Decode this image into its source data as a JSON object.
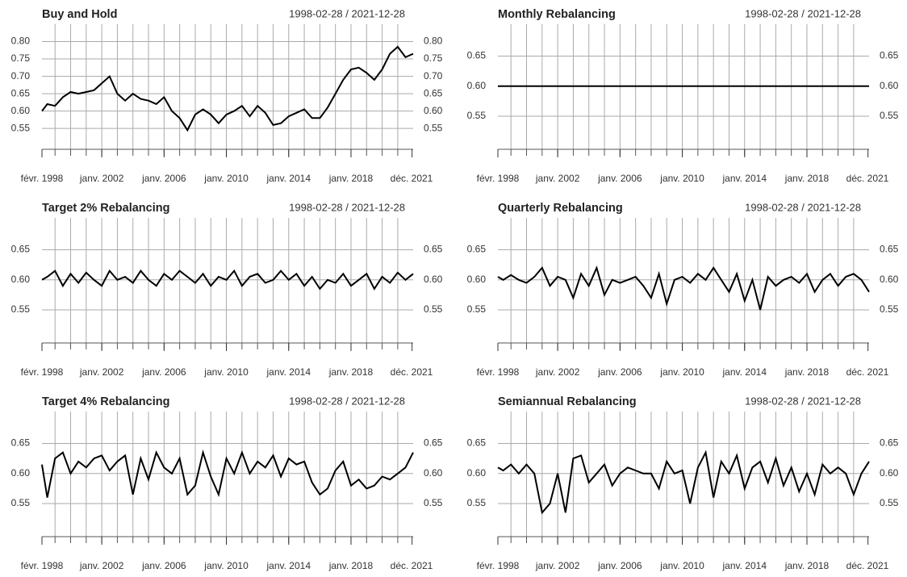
{
  "chart_data": [
    {
      "type": "line",
      "title": "Buy and Hold",
      "date_range": "1998-02-28 / 2021-12-28",
      "x": [
        1998.16,
        1998.5,
        1999,
        1999.5,
        2000,
        2000.5,
        2001,
        2001.5,
        2002,
        2002.5,
        2003,
        2003.5,
        2004,
        2004.5,
        2005,
        2005.5,
        2006,
        2006.5,
        2007,
        2007.5,
        2008,
        2008.5,
        2009,
        2009.5,
        2010,
        2010.5,
        2011,
        2011.5,
        2012,
        2012.5,
        2013,
        2013.5,
        2014,
        2014.5,
        2015,
        2015.5,
        2016,
        2016.5,
        2017,
        2017.5,
        2018,
        2018.5,
        2019,
        2019.5,
        2020,
        2020.5,
        2021,
        2021.5,
        2021.99
      ],
      "values": [
        0.6,
        0.62,
        0.615,
        0.64,
        0.655,
        0.65,
        0.655,
        0.66,
        0.68,
        0.7,
        0.65,
        0.63,
        0.65,
        0.635,
        0.63,
        0.62,
        0.64,
        0.6,
        0.58,
        0.545,
        0.59,
        0.605,
        0.59,
        0.565,
        0.59,
        0.6,
        0.615,
        0.585,
        0.615,
        0.595,
        0.56,
        0.565,
        0.585,
        0.595,
        0.605,
        0.58,
        0.58,
        0.61,
        0.65,
        0.69,
        0.72,
        0.725,
        0.71,
        0.69,
        0.72,
        0.765,
        0.785,
        0.755,
        0.765
      ],
      "color": "#000000",
      "xlim": [
        1998.16,
        2021.99
      ],
      "xticks": [
        {
          "value": 1998.16,
          "label": "févr. 1998"
        },
        {
          "value": 2002,
          "label": "janv. 2002"
        },
        {
          "value": 2006,
          "label": "janv. 2006"
        },
        {
          "value": 2010,
          "label": "janv. 2010"
        },
        {
          "value": 2014,
          "label": "janv. 2014"
        },
        {
          "value": 2018,
          "label": "janv. 2018"
        },
        {
          "value": 2021.92,
          "label": "déc. 2021"
        }
      ],
      "ylim": [
        0.49,
        0.85
      ],
      "yticks": [
        0.55,
        {
          "value": 0.6,
          "label": "0.60"
        },
        0.65,
        {
          "value": 0.7,
          "label": "0.70"
        },
        0.75,
        {
          "value": 0.8,
          "label": "0.80"
        }
      ],
      "grid": true
    },
    {
      "type": "line",
      "title": "Monthly Rebalancing",
      "date_range": "1998-02-28 / 2021-12-28",
      "x": [
        1998.16,
        1998.5,
        1999,
        1999.5,
        2000,
        2000.5,
        2001,
        2001.5,
        2002,
        2002.5,
        2003,
        2003.5,
        2004,
        2004.5,
        2005,
        2005.5,
        2006,
        2006.5,
        2007,
        2007.5,
        2008,
        2008.5,
        2009,
        2009.5,
        2010,
        2010.5,
        2011,
        2011.5,
        2012,
        2012.5,
        2013,
        2013.5,
        2014,
        2014.5,
        2015,
        2015.5,
        2016,
        2016.5,
        2017,
        2017.5,
        2018,
        2018.5,
        2019,
        2019.5,
        2020,
        2020.5,
        2021,
        2021.5,
        2021.99
      ],
      "values": [
        0.6,
        0.6,
        0.6,
        0.6,
        0.6,
        0.6,
        0.6,
        0.6,
        0.6,
        0.6,
        0.6,
        0.6,
        0.6,
        0.6,
        0.6,
        0.6,
        0.6,
        0.6,
        0.6,
        0.6,
        0.6,
        0.6,
        0.6,
        0.6,
        0.6,
        0.6,
        0.6,
        0.6,
        0.6,
        0.6,
        0.6,
        0.6,
        0.6,
        0.6,
        0.6,
        0.6,
        0.6,
        0.6,
        0.6,
        0.6,
        0.6,
        0.6,
        0.6,
        0.6,
        0.6,
        0.6,
        0.6,
        0.6,
        0.6
      ],
      "color": "#000000",
      "xlim": [
        1998.16,
        2021.99
      ],
      "xticks": [
        {
          "value": 1998.16,
          "label": "févr. 1998"
        },
        {
          "value": 2002,
          "label": "janv. 2002"
        },
        {
          "value": 2006,
          "label": "janv. 2006"
        },
        {
          "value": 2010,
          "label": "janv. 2010"
        },
        {
          "value": 2014,
          "label": "janv. 2014"
        },
        {
          "value": 2018,
          "label": "janv. 2018"
        },
        {
          "value": 2021.92,
          "label": "déc. 2021"
        }
      ],
      "ylim": [
        0.495,
        0.703
      ],
      "yticks": [
        0.55,
        {
          "value": 0.6,
          "label": "0.60"
        },
        0.65
      ],
      "grid": true
    },
    {
      "type": "line",
      "title": "Target 2% Rebalancing",
      "date_range": "1998-02-28 / 2021-12-28",
      "x": [
        1998.16,
        1998.5,
        1999,
        1999.5,
        2000,
        2000.5,
        2001,
        2001.5,
        2002,
        2002.5,
        2003,
        2003.5,
        2004,
        2004.5,
        2005,
        2005.5,
        2006,
        2006.5,
        2007,
        2007.5,
        2008,
        2008.5,
        2009,
        2009.5,
        2010,
        2010.5,
        2011,
        2011.5,
        2012,
        2012.5,
        2013,
        2013.5,
        2014,
        2014.5,
        2015,
        2015.5,
        2016,
        2016.5,
        2017,
        2017.5,
        2018,
        2018.5,
        2019,
        2019.5,
        2020,
        2020.5,
        2021,
        2021.5,
        2021.99
      ],
      "values": [
        0.6,
        0.605,
        0.615,
        0.59,
        0.61,
        0.595,
        0.612,
        0.6,
        0.59,
        0.615,
        0.6,
        0.605,
        0.595,
        0.615,
        0.6,
        0.59,
        0.61,
        0.6,
        0.615,
        0.605,
        0.595,
        0.61,
        0.59,
        0.605,
        0.6,
        0.615,
        0.59,
        0.605,
        0.61,
        0.595,
        0.6,
        0.615,
        0.6,
        0.61,
        0.59,
        0.605,
        0.585,
        0.6,
        0.595,
        0.61,
        0.59,
        0.6,
        0.61,
        0.585,
        0.605,
        0.595,
        0.612,
        0.6,
        0.61
      ],
      "color": "#000000",
      "xlim": [
        1998.16,
        2021.99
      ],
      "xticks": [
        {
          "value": 1998.16,
          "label": "févr. 1998"
        },
        {
          "value": 2002,
          "label": "janv. 2002"
        },
        {
          "value": 2006,
          "label": "janv. 2006"
        },
        {
          "value": 2010,
          "label": "janv. 2010"
        },
        {
          "value": 2014,
          "label": "janv. 2014"
        },
        {
          "value": 2018,
          "label": "janv. 2018"
        },
        {
          "value": 2021.92,
          "label": "déc. 2021"
        }
      ],
      "ylim": [
        0.495,
        0.703
      ],
      "yticks": [
        0.55,
        {
          "value": 0.6,
          "label": "0.60"
        },
        0.65
      ],
      "grid": true
    },
    {
      "type": "line",
      "title": "Quarterly Rebalancing",
      "date_range": "1998-02-28 / 2021-12-28",
      "x": [
        1998.16,
        1998.5,
        1999,
        1999.5,
        2000,
        2000.5,
        2001,
        2001.5,
        2002,
        2002.5,
        2003,
        2003.5,
        2004,
        2004.5,
        2005,
        2005.5,
        2006,
        2006.5,
        2007,
        2007.5,
        2008,
        2008.5,
        2009,
        2009.5,
        2010,
        2010.5,
        2011,
        2011.5,
        2012,
        2012.5,
        2013,
        2013.5,
        2014,
        2014.5,
        2015,
        2015.5,
        2016,
        2016.5,
        2017,
        2017.5,
        2018,
        2018.5,
        2019,
        2019.5,
        2020,
        2020.5,
        2021,
        2021.5,
        2021.99
      ],
      "values": [
        0.605,
        0.6,
        0.608,
        0.6,
        0.595,
        0.605,
        0.62,
        0.59,
        0.605,
        0.6,
        0.57,
        0.61,
        0.59,
        0.62,
        0.575,
        0.6,
        0.595,
        0.6,
        0.605,
        0.59,
        0.57,
        0.61,
        0.56,
        0.6,
        0.605,
        0.595,
        0.61,
        0.6,
        0.62,
        0.6,
        0.58,
        0.61,
        0.565,
        0.6,
        0.55,
        0.605,
        0.59,
        0.6,
        0.605,
        0.595,
        0.61,
        0.58,
        0.6,
        0.61,
        0.59,
        0.605,
        0.61,
        0.6,
        0.58
      ],
      "color": "#000000",
      "xlim": [
        1998.16,
        2021.99
      ],
      "xticks": [
        {
          "value": 1998.16,
          "label": "févr. 1998"
        },
        {
          "value": 2002,
          "label": "janv. 2002"
        },
        {
          "value": 2006,
          "label": "janv. 2006"
        },
        {
          "value": 2010,
          "label": "janv. 2010"
        },
        {
          "value": 2014,
          "label": "janv. 2014"
        },
        {
          "value": 2018,
          "label": "janv. 2018"
        },
        {
          "value": 2021.92,
          "label": "déc. 2021"
        }
      ],
      "ylim": [
        0.495,
        0.703
      ],
      "yticks": [
        0.55,
        {
          "value": 0.6,
          "label": "0.60"
        },
        0.65
      ],
      "grid": true
    },
    {
      "type": "line",
      "title": "Target 4% Rebalancing",
      "date_range": "1998-02-28 / 2021-12-28",
      "x": [
        1998.16,
        1998.5,
        1999,
        1999.5,
        2000,
        2000.5,
        2001,
        2001.5,
        2002,
        2002.5,
        2003,
        2003.5,
        2004,
        2004.5,
        2005,
        2005.5,
        2006,
        2006.5,
        2007,
        2007.5,
        2008,
        2008.5,
        2009,
        2009.5,
        2010,
        2010.5,
        2011,
        2011.5,
        2012,
        2012.5,
        2013,
        2013.5,
        2014,
        2014.5,
        2015,
        2015.5,
        2016,
        2016.5,
        2017,
        2017.5,
        2018,
        2018.5,
        2019,
        2019.5,
        2020,
        2020.5,
        2021,
        2021.5,
        2021.99
      ],
      "values": [
        0.615,
        0.56,
        0.625,
        0.635,
        0.6,
        0.62,
        0.61,
        0.625,
        0.63,
        0.605,
        0.62,
        0.63,
        0.565,
        0.625,
        0.59,
        0.635,
        0.61,
        0.6,
        0.625,
        0.565,
        0.58,
        0.635,
        0.595,
        0.565,
        0.625,
        0.6,
        0.635,
        0.6,
        0.62,
        0.61,
        0.63,
        0.595,
        0.625,
        0.615,
        0.62,
        0.585,
        0.565,
        0.575,
        0.605,
        0.62,
        0.58,
        0.59,
        0.575,
        0.58,
        0.595,
        0.59,
        0.6,
        0.61,
        0.635
      ],
      "color": "#000000",
      "xlim": [
        1998.16,
        2021.99
      ],
      "xticks": [
        {
          "value": 1998.16,
          "label": "févr. 1998"
        },
        {
          "value": 2002,
          "label": "janv. 2002"
        },
        {
          "value": 2006,
          "label": "janv. 2006"
        },
        {
          "value": 2010,
          "label": "janv. 2010"
        },
        {
          "value": 2014,
          "label": "janv. 2014"
        },
        {
          "value": 2018,
          "label": "janv. 2018"
        },
        {
          "value": 2021.92,
          "label": "déc. 2021"
        }
      ],
      "ylim": [
        0.495,
        0.703
      ],
      "yticks": [
        0.55,
        {
          "value": 0.6,
          "label": "0.60"
        },
        0.65
      ],
      "grid": true
    },
    {
      "type": "line",
      "title": "Semiannual Rebalancing",
      "date_range": "1998-02-28 / 2021-12-28",
      "x": [
        1998.16,
        1998.5,
        1999,
        1999.5,
        2000,
        2000.5,
        2001,
        2001.5,
        2002,
        2002.5,
        2003,
        2003.5,
        2004,
        2004.5,
        2005,
        2005.5,
        2006,
        2006.5,
        2007,
        2007.5,
        2008,
        2008.5,
        2009,
        2009.5,
        2010,
        2010.5,
        2011,
        2011.5,
        2012,
        2012.5,
        2013,
        2013.5,
        2014,
        2014.5,
        2015,
        2015.5,
        2016,
        2016.5,
        2017,
        2017.5,
        2018,
        2018.5,
        2019,
        2019.5,
        2020,
        2020.5,
        2021,
        2021.5,
        2021.99
      ],
      "values": [
        0.61,
        0.605,
        0.615,
        0.6,
        0.615,
        0.6,
        0.535,
        0.55,
        0.6,
        0.535,
        0.625,
        0.63,
        0.585,
        0.6,
        0.615,
        0.58,
        0.6,
        0.61,
        0.605,
        0.6,
        0.6,
        0.575,
        0.62,
        0.6,
        0.605,
        0.55,
        0.61,
        0.635,
        0.56,
        0.62,
        0.6,
        0.63,
        0.575,
        0.61,
        0.62,
        0.585,
        0.625,
        0.58,
        0.61,
        0.57,
        0.6,
        0.565,
        0.615,
        0.6,
        0.61,
        0.6,
        0.565,
        0.6,
        0.62
      ],
      "color": "#000000",
      "xlim": [
        1998.16,
        2021.99
      ],
      "xticks": [
        {
          "value": 1998.16,
          "label": "févr. 1998"
        },
        {
          "value": 2002,
          "label": "janv. 2002"
        },
        {
          "value": 2006,
          "label": "janv. 2006"
        },
        {
          "value": 2010,
          "label": "janv. 2010"
        },
        {
          "value": 2014,
          "label": "janv. 2014"
        },
        {
          "value": 2018,
          "label": "janv. 2018"
        },
        {
          "value": 2021.92,
          "label": "déc. 2021"
        }
      ],
      "ylim": [
        0.495,
        0.703
      ],
      "yticks": [
        0.55,
        {
          "value": 0.6,
          "label": "0.60"
        },
        0.65
      ],
      "grid": true
    }
  ]
}
